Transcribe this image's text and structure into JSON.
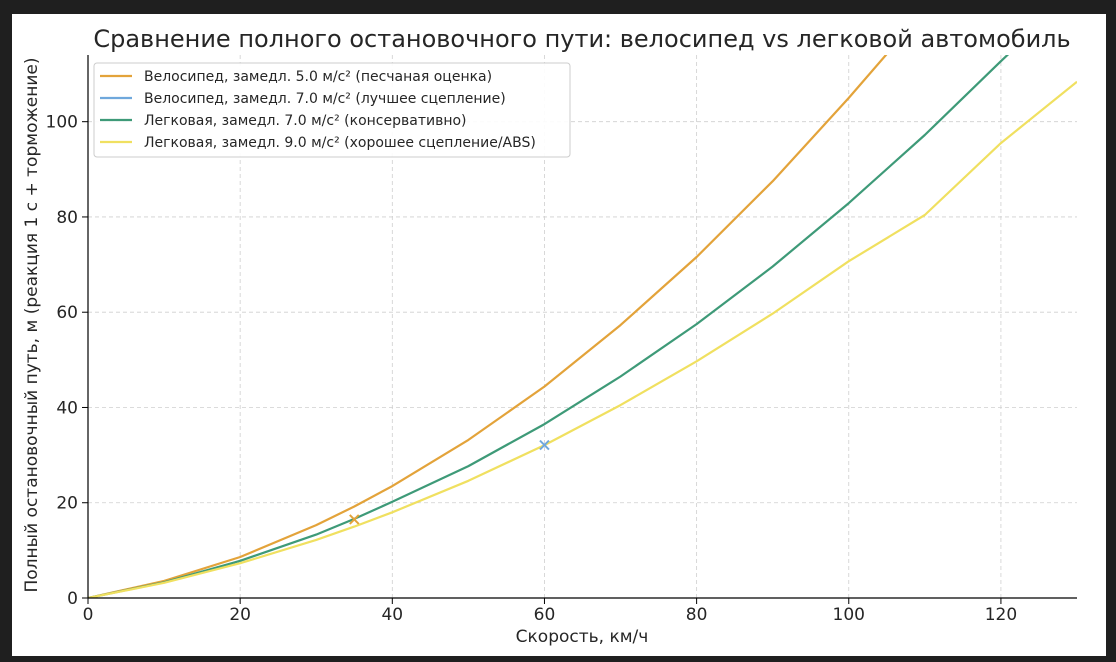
{
  "chart_data": {
    "type": "line",
    "title": "Сравнение полного остановочного пути: велосипед vs легковой автомобиль",
    "xlabel": "Скорость, км/ч",
    "ylabel": "Полный остановочный путь, м (реакция 1 с + торможение)",
    "xlim": [
      0,
      130
    ],
    "ylim": [
      0,
      114
    ],
    "xticks": [
      0,
      20,
      40,
      60,
      80,
      100,
      120
    ],
    "yticks": [
      0,
      20,
      40,
      60,
      80,
      100
    ],
    "grid": true,
    "legend_position": "top-left",
    "reaction_time_s": 1,
    "series": [
      {
        "name": "Велосипед, замедл. 5.0 м/с² (песчаная оценка)",
        "color": "#E3A33A",
        "decel_ms2": 5.0,
        "x": [
          0,
          10,
          20,
          30,
          35,
          40,
          50,
          60,
          70,
          80,
          90,
          100,
          105
        ],
        "y": [
          0,
          3.6,
          8.6,
          15.3,
          19.2,
          23.5,
          33.2,
          44.4,
          57.3,
          71.6,
          87.5,
          105,
          114.2
        ]
      },
      {
        "name": "Велосипед, замедл. 7.0 м/с² (лучшее сцепление)",
        "color": "#6FA8DC",
        "decel_ms2": 7.0,
        "x": [],
        "y": []
      },
      {
        "name": "Легковая, замедл. 7.0 м/с² (консервативно)",
        "color": "#3E9A78",
        "decel_ms2": 7.0,
        "x": [
          0,
          10,
          20,
          30,
          35,
          40,
          50,
          60,
          70,
          80,
          90,
          100,
          110,
          120,
          121
        ],
        "y": [
          0,
          3.3,
          7.8,
          13.3,
          16.6,
          20.2,
          27.7,
          36.5,
          46.5,
          57.5,
          69.6,
          82.9,
          97.2,
          112.7,
          114.2
        ]
      },
      {
        "name": "Легковая, замедл. 9.0 м/с² (хорошее сцепление/ABS)",
        "color": "#F0E060",
        "decel_ms2": 9.0,
        "x": [
          0,
          10,
          20,
          30,
          35,
          40,
          50,
          60,
          70,
          80,
          90,
          100,
          110,
          120,
          130
        ],
        "y": [
          0,
          3.2,
          7.3,
          12.2,
          15.0,
          18.0,
          24.6,
          32.1,
          40.5,
          49.7,
          59.7,
          70.7,
          80.4,
          95.5,
          108.4
        ]
      }
    ],
    "markers": [
      {
        "x": 35,
        "y": 16.5,
        "symbol": "x",
        "color": "#E3A33A"
      },
      {
        "x": 60,
        "y": 32.1,
        "symbol": "x",
        "color": "#6FA8DC"
      }
    ]
  }
}
